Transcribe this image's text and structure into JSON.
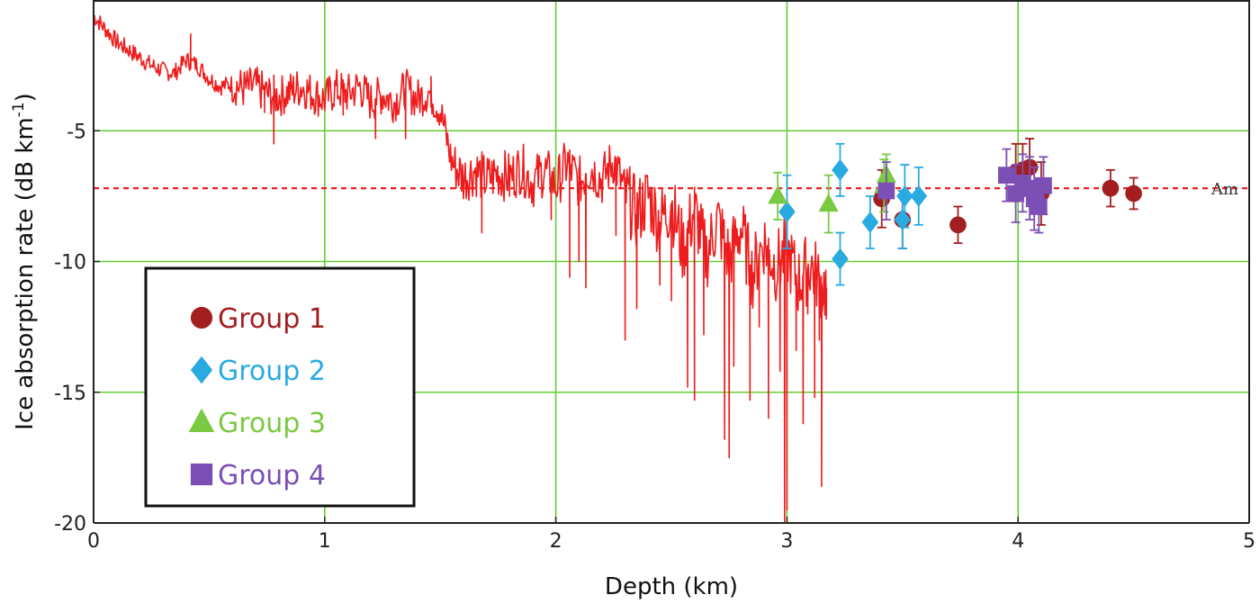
{
  "chart_data": {
    "type": "scatter",
    "xlabel": "Depth (km)",
    "ylabel": "Ice absorption rate (dB km",
    "ylabel_superscript": "-1",
    "ylabel_close": ")",
    "xlim": [
      0,
      5
    ],
    "ylim": [
      -20,
      0
    ],
    "xticks": [
      0,
      1,
      2,
      3,
      4,
      5
    ],
    "yticks": [
      -5,
      -10,
      -15,
      -20
    ],
    "grid": true,
    "grid_color": "#66cc33",
    "legend_position": "bottom-left",
    "reference_line": {
      "label": "Am",
      "y": -7.2,
      "color": "#ee2222",
      "style": "dashed"
    },
    "profile": {
      "color": "#ee1c1c",
      "points": [
        [
          0.0,
          -0.6
        ],
        [
          0.05,
          -1.1
        ],
        [
          0.1,
          -1.6
        ],
        [
          0.15,
          -1.9
        ],
        [
          0.2,
          -2.2
        ],
        [
          0.25,
          -2.5
        ],
        [
          0.3,
          -2.7
        ],
        [
          0.35,
          -2.8
        ],
        [
          0.4,
          -2.3
        ],
        [
          0.45,
          -2.5
        ],
        [
          0.5,
          -3.0
        ],
        [
          0.55,
          -3.3
        ],
        [
          0.6,
          -3.2
        ],
        [
          0.65,
          -3.4
        ],
        [
          0.7,
          -3.3
        ],
        [
          0.75,
          -3.6
        ],
        [
          0.8,
          -3.7
        ],
        [
          0.85,
          -3.5
        ],
        [
          0.9,
          -3.3
        ],
        [
          0.95,
          -3.6
        ],
        [
          1.0,
          -3.8
        ],
        [
          1.05,
          -3.4
        ],
        [
          1.1,
          -3.6
        ],
        [
          1.15,
          -3.3
        ],
        [
          1.2,
          -3.9
        ],
        [
          1.25,
          -3.6
        ],
        [
          1.3,
          -3.9
        ],
        [
          1.35,
          -3.4
        ],
        [
          1.4,
          -3.8
        ],
        [
          1.45,
          -3.5
        ],
        [
          1.5,
          -4.2
        ],
        [
          1.55,
          -6.2
        ],
        [
          1.6,
          -6.8
        ],
        [
          1.65,
          -6.5
        ],
        [
          1.7,
          -6.9
        ],
        [
          1.75,
          -6.6
        ],
        [
          1.8,
          -6.8
        ],
        [
          1.85,
          -6.4
        ],
        [
          1.9,
          -7.0
        ],
        [
          1.95,
          -6.5
        ],
        [
          2.0,
          -7.1
        ],
        [
          2.05,
          -6.2
        ],
        [
          2.1,
          -7.0
        ],
        [
          2.15,
          -6.4
        ],
        [
          2.2,
          -6.9
        ],
        [
          2.25,
          -6.1
        ],
        [
          2.3,
          -7.4
        ],
        [
          2.35,
          -8.2
        ],
        [
          2.4,
          -7.5
        ],
        [
          2.45,
          -8.5
        ],
        [
          2.5,
          -7.8
        ],
        [
          2.55,
          -9.5
        ],
        [
          2.6,
          -8.0
        ],
        [
          2.65,
          -9.8
        ],
        [
          2.7,
          -8.4
        ],
        [
          2.75,
          -9.9
        ],
        [
          2.8,
          -8.7
        ],
        [
          2.85,
          -10.5
        ],
        [
          2.9,
          -9.2
        ],
        [
          2.95,
          -10.2
        ],
        [
          3.0,
          -9.6
        ],
        [
          3.05,
          -10.8
        ],
        [
          3.1,
          -10.1
        ],
        [
          3.15,
          -10.9
        ],
        [
          3.17,
          -11.0
        ]
      ],
      "spikes": [
        [
          0.42,
          -1.3
        ],
        [
          0.74,
          -4.3
        ],
        [
          0.78,
          -5.5
        ],
        [
          1.08,
          -4.4
        ],
        [
          1.22,
          -5.3
        ],
        [
          1.35,
          -5.3
        ],
        [
          1.46,
          -4.1
        ],
        [
          1.68,
          -8.9
        ],
        [
          1.8,
          -7.5
        ],
        [
          1.98,
          -8.4
        ],
        [
          2.06,
          -10.6
        ],
        [
          2.1,
          -10.0
        ],
        [
          2.13,
          -11.0
        ],
        [
          2.26,
          -9.0
        ],
        [
          2.3,
          -13.0
        ],
        [
          2.35,
          -11.8
        ],
        [
          2.45,
          -10.9
        ],
        [
          2.5,
          -11.5
        ],
        [
          2.57,
          -14.8
        ],
        [
          2.6,
          -15.3
        ],
        [
          2.64,
          -12.8
        ],
        [
          2.73,
          -16.8
        ],
        [
          2.75,
          -17.5
        ],
        [
          2.77,
          -14.0
        ],
        [
          2.84,
          -15.3
        ],
        [
          2.88,
          -12.5
        ],
        [
          2.92,
          -16.0
        ],
        [
          2.97,
          -14.2
        ],
        [
          2.99,
          -20.0
        ],
        [
          3.0,
          -19.5
        ],
        [
          3.04,
          -13.4
        ],
        [
          3.07,
          -16.2
        ],
        [
          3.09,
          -12.0
        ],
        [
          3.12,
          -15.2
        ],
        [
          3.14,
          -13.0
        ],
        [
          3.15,
          -18.6
        ],
        [
          3.17,
          -12.2
        ]
      ]
    },
    "series": [
      {
        "name": "Group 1",
        "color": "#a31f1f",
        "marker": "circle",
        "points": [
          {
            "x": 3.41,
            "y": -7.6,
            "err": 1.1
          },
          {
            "x": 3.5,
            "y": -8.4,
            "err": 1.1
          },
          {
            "x": 3.74,
            "y": -8.6,
            "err": 0.7
          },
          {
            "x": 3.99,
            "y": -6.6,
            "err": 1.1
          },
          {
            "x": 4.02,
            "y": -6.5,
            "err": 1.0
          },
          {
            "x": 4.05,
            "y": -6.4,
            "err": 1.1
          },
          {
            "x": 4.1,
            "y": -7.4,
            "err": 1.2
          },
          {
            "x": 4.4,
            "y": -7.2,
            "err": 0.7
          },
          {
            "x": 4.5,
            "y": -7.4,
            "err": 0.6
          }
        ]
      },
      {
        "name": "Group 2",
        "color": "#29abe2",
        "marker": "diamond",
        "points": [
          {
            "x": 3.0,
            "y": -8.1,
            "err": 1.4
          },
          {
            "x": 3.23,
            "y": -6.5,
            "err": 1.0
          },
          {
            "x": 3.23,
            "y": -9.9,
            "err": 1.0
          },
          {
            "x": 3.36,
            "y": -8.5,
            "err": 1.0
          },
          {
            "x": 3.51,
            "y": -7.5,
            "err": 1.2
          },
          {
            "x": 3.5,
            "y": -8.4,
            "err": 1.1
          },
          {
            "x": 3.57,
            "y": -7.5,
            "err": 1.1
          }
        ]
      },
      {
        "name": "Group 3",
        "color": "#7ac943",
        "marker": "triangle",
        "points": [
          {
            "x": 2.96,
            "y": -7.5,
            "err": 0.9
          },
          {
            "x": 3.18,
            "y": -7.8,
            "err": 1.1
          },
          {
            "x": 3.42,
            "y": -7.1,
            "err": 1.0
          },
          {
            "x": 3.43,
            "y": -6.7,
            "err": 0.8
          }
        ]
      },
      {
        "name": "Group 4",
        "color": "#7b4fb3",
        "marker": "square",
        "points": [
          {
            "x": 3.43,
            "y": -7.3,
            "err": 1.1
          },
          {
            "x": 3.95,
            "y": -6.7,
            "err": 1.0
          },
          {
            "x": 3.99,
            "y": -7.4,
            "err": 1.1
          },
          {
            "x": 4.02,
            "y": -7.0,
            "err": 1.1
          },
          {
            "x": 4.05,
            "y": -7.2,
            "err": 1.2
          },
          {
            "x": 4.07,
            "y": -7.6,
            "err": 1.2
          },
          {
            "x": 4.09,
            "y": -7.9,
            "err": 1.0
          },
          {
            "x": 4.11,
            "y": -7.1,
            "err": 1.1
          }
        ]
      }
    ]
  }
}
